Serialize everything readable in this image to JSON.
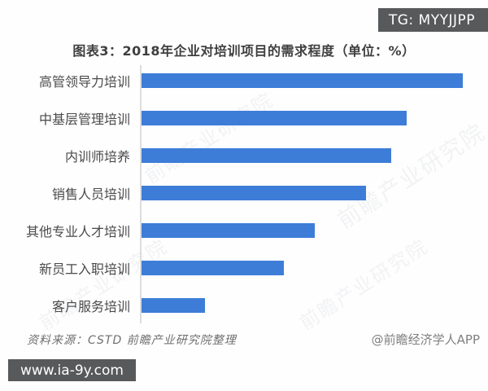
{
  "badges": {
    "tg": "TG: MYYJJPP",
    "url": "www.ia-9y.com"
  },
  "title": "图表3：2018年企业对培训项目的需求程度（单位：%）",
  "chart_data": {
    "type": "bar",
    "orientation": "horizontal",
    "title": "图表3：2018年企业对培训项目的需求程度（单位：%）",
    "unit": "%",
    "categories": [
      "高管领导力培训",
      "中基层管理培训",
      "内训师培养",
      "销售人员培训",
      "其他专业人才培训",
      "新员工入职培训",
      "客户服务培训"
    ],
    "values": [
      63,
      52,
      49,
      44,
      34,
      28,
      12.5
    ],
    "xlim": [
      0,
      68
    ],
    "xlabel": "",
    "ylabel": "",
    "grid": false,
    "legend": false,
    "value_labels_shown": false,
    "bar_color": "#3d7dd8"
  },
  "footer": {
    "source": "资料来源：CSTD 前瞻产业研究院整理",
    "credit": "@前瞻经济学人APP"
  },
  "watermark_text": "前瞻产业研究院",
  "colors": {
    "bar": "#3d7dd8",
    "badge_bg": "#58595b",
    "title_text": "#3f3f3f",
    "label_text": "#4a4a4a",
    "axis_line": "#dcdcdc",
    "footer_text": "#6f6f6f"
  }
}
